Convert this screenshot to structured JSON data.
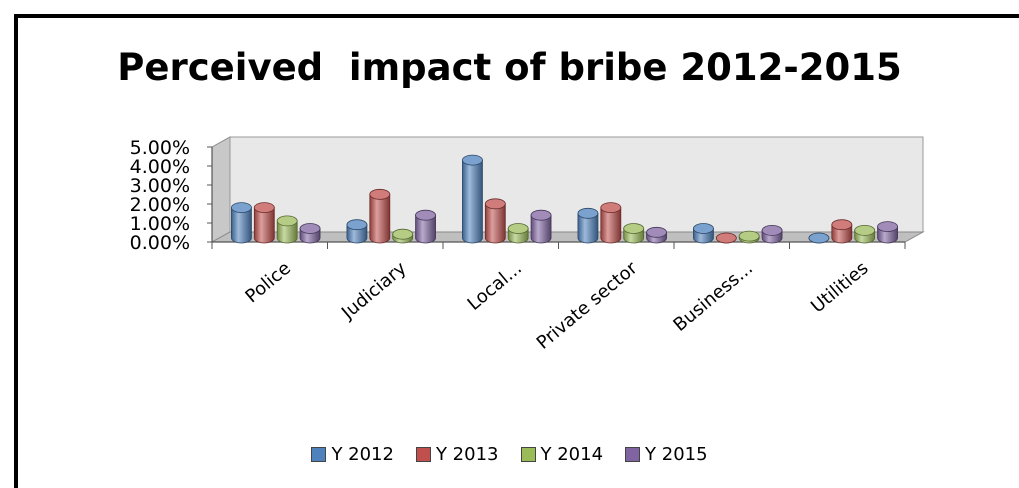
{
  "chart_data": {
    "type": "bar",
    "title": "Perceived  impact of bribe 2012-2015",
    "categories": [
      "Police",
      "Judiciary",
      "Local...",
      "Private sector",
      "Business...",
      "Utilities"
    ],
    "series": [
      {
        "name": "Y 2012",
        "color": "#4F81BD",
        "values": [
          1.6,
          0.7,
          4.1,
          1.3,
          0.5,
          0.0
        ]
      },
      {
        "name": "Y 2013",
        "color": "#C0504D",
        "values": [
          1.6,
          2.3,
          1.8,
          1.6,
          0.0,
          0.7
        ]
      },
      {
        "name": "Y 2014",
        "color": "#9BBB59",
        "values": [
          0.9,
          0.2,
          0.5,
          0.5,
          0.1,
          0.4
        ]
      },
      {
        "name": "Y 2015",
        "color": "#8064A2",
        "values": [
          0.5,
          1.2,
          1.2,
          0.3,
          0.4,
          0.6
        ]
      }
    ],
    "y_ticks": [
      "0.00%",
      "1.00%",
      "2.00%",
      "3.00%",
      "4.00%",
      "5.00%"
    ],
    "ylim": [
      0,
      5
    ],
    "legend_position": "bottom",
    "chart_style": "3d-clustered-cylinder"
  }
}
